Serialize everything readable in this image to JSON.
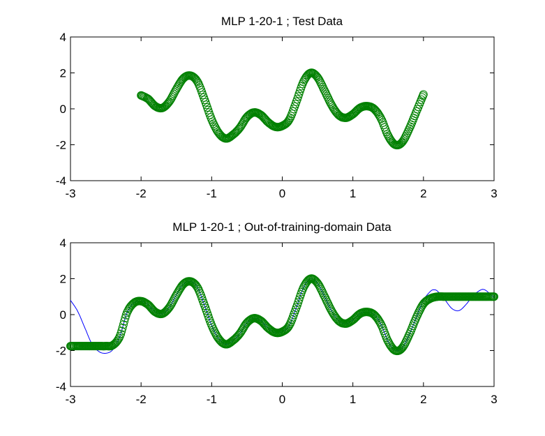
{
  "chart_data": [
    {
      "type": "scatter",
      "title": "MLP 1-20-1 ; Test Data",
      "xlabel": "",
      "ylabel": "",
      "xlim": [
        -3,
        3
      ],
      "ylim": [
        -4,
        4
      ],
      "xticks": [
        "-3",
        "-2",
        "-1",
        "0",
        "1",
        "2",
        "3"
      ],
      "yticks": [
        "4",
        "2",
        "0",
        "-2",
        "-4"
      ],
      "grid": false,
      "series": [
        {
          "marker": "circle",
          "color": "#008000",
          "x_range": [
            -2,
            2
          ],
          "points": [
            [
              -2.0,
              0.75
            ],
            [
              -1.9,
              0.55
            ],
            [
              -1.8,
              0.15
            ],
            [
              -1.7,
              0.05
            ],
            [
              -1.6,
              0.4
            ],
            [
              -1.5,
              1.1
            ],
            [
              -1.4,
              1.7
            ],
            [
              -1.3,
              1.85
            ],
            [
              -1.2,
              1.5
            ],
            [
              -1.1,
              0.5
            ],
            [
              -1.0,
              -0.6
            ],
            [
              -0.9,
              -1.35
            ],
            [
              -0.8,
              -1.65
            ],
            [
              -0.7,
              -1.45
            ],
            [
              -0.6,
              -1.05
            ],
            [
              -0.5,
              -0.45
            ],
            [
              -0.4,
              -0.2
            ],
            [
              -0.3,
              -0.35
            ],
            [
              -0.2,
              -0.75
            ],
            [
              -0.1,
              -1.0
            ],
            [
              0.0,
              -0.95
            ],
            [
              0.1,
              -0.6
            ],
            [
              0.2,
              0.4
            ],
            [
              0.3,
              1.5
            ],
            [
              0.4,
              2.0
            ],
            [
              0.5,
              1.75
            ],
            [
              0.6,
              1.0
            ],
            [
              0.7,
              0.2
            ],
            [
              0.8,
              -0.35
            ],
            [
              0.9,
              -0.5
            ],
            [
              1.0,
              -0.3
            ],
            [
              1.1,
              0.05
            ],
            [
              1.2,
              0.15
            ],
            [
              1.3,
              0.0
            ],
            [
              1.4,
              -0.55
            ],
            [
              1.5,
              -1.5
            ],
            [
              1.6,
              -2.0
            ],
            [
              1.7,
              -1.85
            ],
            [
              1.8,
              -1.1
            ],
            [
              1.9,
              -0.15
            ],
            [
              2.0,
              0.8
            ]
          ]
        }
      ]
    },
    {
      "type": "scatter",
      "title": "MLP 1-20-1 ; Out-of-training-domain Data",
      "xlabel": "",
      "ylabel": "",
      "xlim": [
        -3,
        3
      ],
      "ylim": [
        -4,
        4
      ],
      "xticks": [
        "-3",
        "-2",
        "-1",
        "0",
        "1",
        "2",
        "3"
      ],
      "yticks": [
        "4",
        "2",
        "0",
        "-2",
        "-4"
      ],
      "grid": false,
      "series": [
        {
          "marker": "circle",
          "color": "#008000",
          "x_range": [
            -3,
            3
          ],
          "points": [
            [
              -3.0,
              -1.75
            ],
            [
              -2.9,
              -1.75
            ],
            [
              -2.8,
              -1.75
            ],
            [
              -2.7,
              -1.75
            ],
            [
              -2.6,
              -1.75
            ],
            [
              -2.5,
              -1.75
            ],
            [
              -2.4,
              -1.7
            ],
            [
              -2.3,
              -1.2
            ],
            [
              -2.2,
              0.1
            ],
            [
              -2.1,
              0.65
            ],
            [
              -2.0,
              0.75
            ],
            [
              -1.9,
              0.55
            ],
            [
              -1.8,
              0.15
            ],
            [
              -1.7,
              0.05
            ],
            [
              -1.6,
              0.4
            ],
            [
              -1.5,
              1.1
            ],
            [
              -1.4,
              1.7
            ],
            [
              -1.3,
              1.85
            ],
            [
              -1.2,
              1.5
            ],
            [
              -1.1,
              0.5
            ],
            [
              -1.0,
              -0.6
            ],
            [
              -0.9,
              -1.35
            ],
            [
              -0.8,
              -1.65
            ],
            [
              -0.7,
              -1.45
            ],
            [
              -0.6,
              -1.05
            ],
            [
              -0.5,
              -0.45
            ],
            [
              -0.4,
              -0.2
            ],
            [
              -0.3,
              -0.35
            ],
            [
              -0.2,
              -0.75
            ],
            [
              -0.1,
              -1.0
            ],
            [
              0.0,
              -0.95
            ],
            [
              0.1,
              -0.6
            ],
            [
              0.2,
              0.4
            ],
            [
              0.3,
              1.5
            ],
            [
              0.4,
              2.0
            ],
            [
              0.5,
              1.75
            ],
            [
              0.6,
              1.0
            ],
            [
              0.7,
              0.2
            ],
            [
              0.8,
              -0.35
            ],
            [
              0.9,
              -0.5
            ],
            [
              1.0,
              -0.3
            ],
            [
              1.1,
              0.05
            ],
            [
              1.2,
              0.15
            ],
            [
              1.3,
              0.0
            ],
            [
              1.4,
              -0.55
            ],
            [
              1.5,
              -1.5
            ],
            [
              1.6,
              -2.0
            ],
            [
              1.7,
              -1.85
            ],
            [
              1.8,
              -1.1
            ],
            [
              1.9,
              -0.15
            ],
            [
              2.0,
              0.6
            ],
            [
              2.1,
              0.9
            ],
            [
              2.2,
              1.0
            ],
            [
              2.3,
              1.0
            ],
            [
              2.4,
              1.0
            ],
            [
              2.5,
              1.0
            ],
            [
              2.6,
              1.0
            ],
            [
              2.7,
              1.0
            ],
            [
              2.8,
              1.0
            ],
            [
              2.9,
              1.0
            ],
            [
              3.0,
              1.0
            ]
          ]
        },
        {
          "marker": "none",
          "line": "solid",
          "color": "#0000ff",
          "points": [
            [
              -3.0,
              0.8
            ],
            [
              -2.9,
              0.2
            ],
            [
              -2.8,
              -0.7
            ],
            [
              -2.7,
              -1.6
            ],
            [
              -2.6,
              -2.05
            ],
            [
              -2.5,
              -2.15
            ],
            [
              -2.4,
              -1.95
            ],
            [
              -2.3,
              -1.2
            ],
            [
              -2.2,
              0.1
            ],
            [
              -2.1,
              0.65
            ],
            [
              -2.0,
              0.75
            ],
            [
              -1.9,
              0.55
            ],
            [
              -1.8,
              0.15
            ],
            [
              -1.7,
              0.05
            ],
            [
              -1.6,
              0.4
            ],
            [
              -1.5,
              1.1
            ],
            [
              -1.4,
              1.7
            ],
            [
              -1.3,
              1.85
            ],
            [
              -1.2,
              1.5
            ],
            [
              -1.1,
              0.5
            ],
            [
              -1.0,
              -0.6
            ],
            [
              -0.9,
              -1.35
            ],
            [
              -0.8,
              -1.65
            ],
            [
              -0.7,
              -1.45
            ],
            [
              -0.6,
              -1.05
            ],
            [
              -0.5,
              -0.45
            ],
            [
              -0.4,
              -0.2
            ],
            [
              -0.3,
              -0.35
            ],
            [
              -0.2,
              -0.75
            ],
            [
              -0.1,
              -1.0
            ],
            [
              0.0,
              -0.95
            ],
            [
              0.1,
              -0.6
            ],
            [
              0.2,
              0.4
            ],
            [
              0.3,
              1.5
            ],
            [
              0.4,
              2.0
            ],
            [
              0.5,
              1.75
            ],
            [
              0.6,
              1.0
            ],
            [
              0.7,
              0.2
            ],
            [
              0.8,
              -0.35
            ],
            [
              0.9,
              -0.5
            ],
            [
              1.0,
              -0.3
            ],
            [
              1.1,
              0.05
            ],
            [
              1.2,
              0.15
            ],
            [
              1.3,
              0.0
            ],
            [
              1.4,
              -0.55
            ],
            [
              1.5,
              -1.5
            ],
            [
              1.6,
              -2.0
            ],
            [
              1.7,
              -1.85
            ],
            [
              1.8,
              -1.1
            ],
            [
              1.9,
              -0.15
            ],
            [
              2.0,
              0.8
            ],
            [
              2.1,
              1.3
            ],
            [
              2.15,
              1.38
            ],
            [
              2.2,
              1.3
            ],
            [
              2.3,
              0.85
            ],
            [
              2.4,
              0.35
            ],
            [
              2.5,
              0.22
            ],
            [
              2.6,
              0.55
            ],
            [
              2.7,
              1.05
            ],
            [
              2.8,
              1.35
            ],
            [
              2.85,
              1.4
            ],
            [
              2.9,
              1.3
            ],
            [
              3.0,
              0.95
            ]
          ]
        }
      ]
    }
  ]
}
